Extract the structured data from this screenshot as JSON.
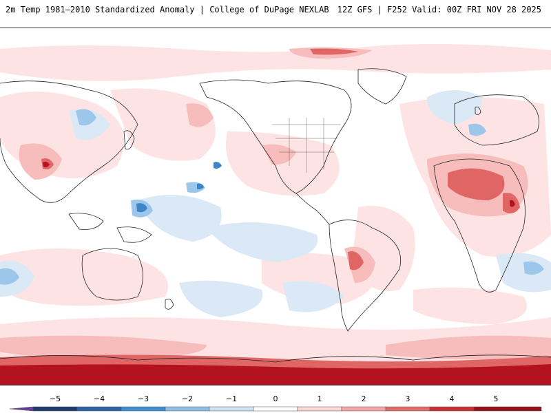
{
  "header": {
    "title": "2m Temp 1981–2010 Standardized Anomaly | College of DuPage NEXLAB",
    "run_info": "12Z GFS | F252 Valid: 00Z FRI NOV 28 2025"
  },
  "legend": {
    "ticks": [
      "−5",
      "−4",
      "−3",
      "−2",
      "−1",
      "0",
      "1",
      "2",
      "3",
      "4",
      "5"
    ],
    "colors": [
      "#6a3d9a",
      "#1f3a6e",
      "#2a63a8",
      "#3f8fd2",
      "#8fbfe6",
      "#cfe2f4",
      "#ffffff",
      "#fbd6d6",
      "#f4a6a6",
      "#e36d6d",
      "#cc2e36",
      "#9a0f1c",
      "#f4c20d"
    ]
  },
  "palette": {
    "pink_light": "#fde3e3",
    "pink": "#f7bcbc",
    "red": "#e06666",
    "dark_red": "#b3121f",
    "blue_light": "#dbe9f6",
    "blue": "#9cc7ea",
    "blue_dark": "#3d85c6",
    "coast": "#222222"
  }
}
